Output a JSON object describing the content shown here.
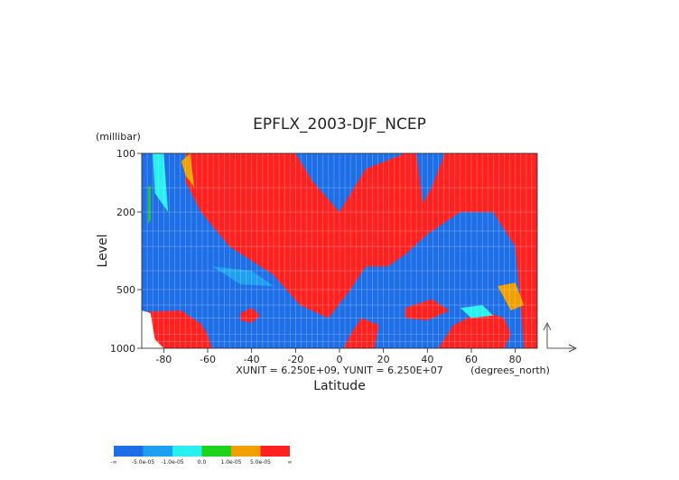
{
  "chart_data": {
    "type": "heatmap",
    "title": "EPFLX_2003-DJF_NCEP",
    "xlabel": "Latitude",
    "ylabel": "Level",
    "yunit": "(millibar)",
    "xunit_label": "(degrees_north)",
    "scale_note": "XUNIT = 6.250E+09, YUNIT = 6.250E+07",
    "xlim": [
      -90,
      90
    ],
    "ylim": [
      100,
      1000
    ],
    "y_scale": "log",
    "x_ticks": [
      "-80",
      "-60",
      "-40",
      "-20",
      "0",
      "20",
      "40",
      "60",
      "80"
    ],
    "y_ticks": [
      "100",
      "200",
      "500",
      "1000"
    ],
    "legend": {
      "placement": "bottom-left",
      "colors": [
        "#1e6ee8",
        "#1ea0f0",
        "#28f0f0",
        "#1ed21e",
        "#f0a000",
        "#ff2020"
      ],
      "labels": [
        "-∞",
        "-5.0e-05",
        "-1.0e-05",
        "0.0",
        "1.0e-05",
        "5.0e-05",
        "∞"
      ]
    },
    "regions": [
      {
        "class": 5,
        "points": [
          [
            -70,
            100
          ],
          [
            -20,
            100
          ],
          [
            -12,
            140
          ],
          [
            0,
            200
          ],
          [
            12,
            120
          ],
          [
            30,
            100
          ],
          [
            90,
            100
          ],
          [
            90,
            1000
          ],
          [
            84,
            1000
          ],
          [
            82,
            500
          ],
          [
            80,
            300
          ],
          [
            70,
            200
          ],
          [
            55,
            200
          ],
          [
            40,
            260
          ],
          [
            30,
            330
          ],
          [
            22,
            380
          ],
          [
            12,
            380
          ],
          [
            5,
            500
          ],
          [
            -5,
            700
          ],
          [
            -18,
            600
          ],
          [
            -30,
            420
          ],
          [
            -50,
            300
          ],
          [
            -63,
            200
          ],
          [
            -70,
            140
          ]
        ]
      },
      {
        "class": 5,
        "points": [
          [
            -90,
            650
          ],
          [
            -72,
            640
          ],
          [
            -63,
            750
          ],
          [
            -60,
            850
          ],
          [
            -58,
            1000
          ],
          [
            -90,
            1000
          ]
        ]
      },
      {
        "class": 5,
        "points": [
          [
            -45,
            660
          ],
          [
            -40,
            620
          ],
          [
            -36,
            680
          ],
          [
            -40,
            740
          ],
          [
            -45,
            720
          ]
        ]
      },
      {
        "class": 5,
        "points": [
          [
            10,
            700
          ],
          [
            18,
            760
          ],
          [
            16,
            1000
          ],
          [
            2,
            1000
          ],
          [
            5,
            850
          ]
        ]
      },
      {
        "class": 5,
        "points": [
          [
            30,
            620
          ],
          [
            42,
            560
          ],
          [
            50,
            640
          ],
          [
            40,
            720
          ],
          [
            30,
            700
          ]
        ]
      },
      {
        "class": 5,
        "points": [
          [
            45,
            1000
          ],
          [
            52,
            760
          ],
          [
            65,
            640
          ],
          [
            75,
            700
          ],
          [
            78,
            850
          ],
          [
            75,
            1000
          ]
        ]
      },
      {
        "class": 4,
        "points": [
          [
            -72,
            110
          ],
          [
            -68,
            100
          ],
          [
            -66,
            150
          ],
          [
            -70,
            130
          ]
        ]
      },
      {
        "class": 4,
        "points": [
          [
            72,
            480
          ],
          [
            80,
            460
          ],
          [
            84,
            600
          ],
          [
            78,
            640
          ]
        ]
      },
      {
        "class": 2,
        "points": [
          [
            -85,
            100
          ],
          [
            -80,
            100
          ],
          [
            -78,
            200
          ],
          [
            -84,
            160
          ]
        ]
      },
      {
        "class": 2,
        "points": [
          [
            55,
            620
          ],
          [
            65,
            600
          ],
          [
            70,
            680
          ],
          [
            60,
            700
          ]
        ]
      },
      {
        "class": 3,
        "points": [
          [
            -87,
            150
          ],
          [
            -86,
            145
          ],
          [
            -86,
            220
          ],
          [
            -87,
            230
          ]
        ]
      },
      {
        "class": 0,
        "points": [
          [
            -20,
            100
          ],
          [
            0,
            100
          ],
          [
            -2,
            180
          ],
          [
            -12,
            140
          ]
        ]
      },
      {
        "class": 0,
        "points": [
          [
            35,
            100
          ],
          [
            48,
            100
          ],
          [
            42,
            150
          ],
          [
            38,
            180
          ]
        ]
      },
      {
        "class": 1,
        "points": [
          [
            -58,
            380
          ],
          [
            -40,
            400
          ],
          [
            -30,
            480
          ],
          [
            -45,
            470
          ]
        ]
      }
    ]
  }
}
